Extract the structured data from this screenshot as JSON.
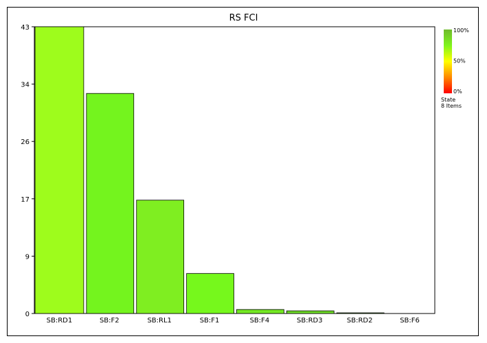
{
  "chart_data": {
    "type": "bar",
    "title": "RS FCI",
    "xlabel": "",
    "ylabel": "",
    "categories": [
      "SB:RD1",
      "SB:F2",
      "SB:RL1",
      "SB:F1",
      "SB:F4",
      "SB:RD3",
      "SB:RD2",
      "SB:F6"
    ],
    "values": [
      43,
      33,
      17,
      6,
      0.6,
      0.4,
      0.1,
      0
    ],
    "yticks": [
      "0",
      "9",
      "17",
      "26",
      "34",
      "43"
    ],
    "ytick_values": [
      0,
      8.6,
      17.2,
      25.8,
      34.4,
      43
    ],
    "ylim": [
      0,
      43
    ],
    "bar_colors": [
      "#9efc1c",
      "#74f41e",
      "#7fee21",
      "#76f81c",
      "#74e824",
      "#6fdc28",
      "#5db52a",
      "#ffffff"
    ],
    "grid": false,
    "legend": {
      "position": "right",
      "tick_labels": [
        "100%",
        "50%",
        "0%"
      ],
      "caption_line1": "State",
      "caption_line2": "8 Items",
      "gradient_colors": [
        "#6fba2c",
        "#7ff41c",
        "#ffff00",
        "#ff8800",
        "#ff0000"
      ]
    }
  }
}
